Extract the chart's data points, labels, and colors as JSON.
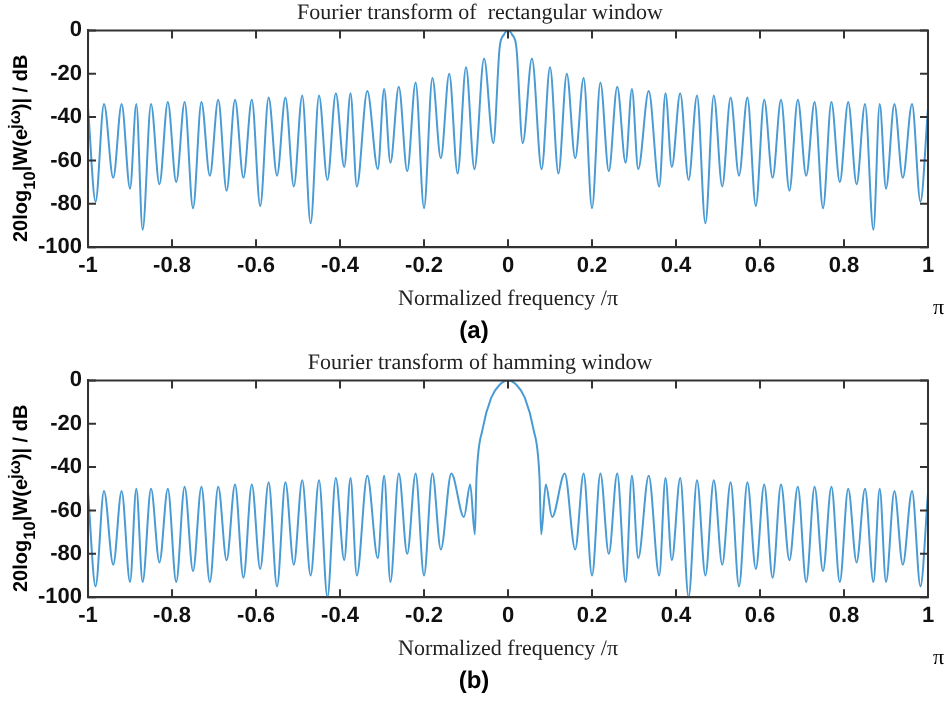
{
  "chart_data": [
    {
      "type": "line",
      "title": "Fourier transform of  rectangular window",
      "xlabel": "Normalized frequency /π",
      "ylabel": "20log$_{10}$|W(e$^{jω}$)| / dB",
      "x": [
        -1,
        -0.982,
        -0.962,
        -0.94,
        -0.92,
        -0.9,
        -0.885,
        -0.87,
        -0.85,
        -0.83,
        -0.81,
        -0.79,
        -0.77,
        -0.75,
        -0.73,
        -0.71,
        -0.69,
        -0.67,
        -0.65,
        -0.63,
        -0.61,
        -0.59,
        -0.57,
        -0.55,
        -0.53,
        -0.51,
        -0.49,
        -0.47,
        -0.45,
        -0.43,
        -0.41,
        -0.39,
        -0.375,
        -0.36,
        -0.335,
        -0.31,
        -0.295,
        -0.28,
        -0.26,
        -0.24,
        -0.22,
        -0.2,
        -0.18,
        -0.16,
        -0.14,
        -0.12,
        -0.1,
        -0.08,
        -0.057,
        -0.035,
        -0.02,
        -0.01,
        0,
        0.01,
        0.02,
        0.035,
        0.057,
        0.08,
        0.1,
        0.12,
        0.14,
        0.16,
        0.18,
        0.2,
        0.22,
        0.24,
        0.26,
        0.28,
        0.295,
        0.31,
        0.335,
        0.36,
        0.375,
        0.39,
        0.41,
        0.43,
        0.45,
        0.47,
        0.49,
        0.51,
        0.53,
        0.55,
        0.57,
        0.59,
        0.61,
        0.63,
        0.65,
        0.67,
        0.69,
        0.71,
        0.73,
        0.75,
        0.77,
        0.79,
        0.81,
        0.83,
        0.85,
        0.87,
        0.885,
        0.9,
        0.92,
        0.94,
        0.962,
        0.982,
        1
      ],
      "series": [
        {
          "color": "#4a9bd4",
          "values": [
            -36,
            -79,
            -34,
            -68,
            -34,
            -73,
            -34,
            -92,
            -34,
            -71,
            -33,
            -70,
            -33,
            -82,
            -33,
            -67,
            -32,
            -74,
            -32,
            -68,
            -32,
            -81,
            -31,
            -67,
            -31,
            -72,
            -30,
            -89,
            -30,
            -69,
            -29,
            -63,
            -29,
            -72,
            -28,
            -64,
            -27,
            -61,
            -26,
            -65,
            -24,
            -82,
            -22,
            -59,
            -20,
            -66,
            -17,
            -64,
            -13,
            -52,
            -8,
            -2,
            0,
            -2,
            -8,
            -52,
            -13,
            -64,
            -17,
            -66,
            -20,
            -59,
            -22,
            -82,
            -24,
            -65,
            -26,
            -61,
            -27,
            -64,
            -28,
            -72,
            -29,
            -63,
            -29,
            -69,
            -30,
            -89,
            -30,
            -72,
            -31,
            -67,
            -31,
            -81,
            -32,
            -68,
            -32,
            -74,
            -32,
            -67,
            -33,
            -82,
            -33,
            -70,
            -33,
            -71,
            -34,
            -92,
            -34,
            -73,
            -34,
            -68,
            -34,
            -79,
            -36
          ]
        }
      ],
      "xlim": [
        -1,
        1
      ],
      "xticks": [
        -1,
        -0.8,
        -0.6,
        -0.4,
        -0.2,
        0,
        0.2,
        0.4,
        0.6,
        0.8,
        1
      ],
      "ylim": [
        -100,
        0
      ],
      "yticks": [
        -100,
        -80,
        -60,
        -40,
        -20,
        0
      ],
      "grid": false,
      "legend": false,
      "annotations": [
        "π",
        "(a)"
      ]
    },
    {
      "type": "line",
      "title": "Fourier transform of hamming window",
      "xlabel": "Normalized frequency /π",
      "ylabel": "20log$_{10}$|W(e$^{jω}$)| / dB",
      "x": [
        -1,
        -0.982,
        -0.962,
        -0.94,
        -0.92,
        -0.9,
        -0.885,
        -0.87,
        -0.85,
        -0.83,
        -0.81,
        -0.79,
        -0.77,
        -0.75,
        -0.73,
        -0.71,
        -0.69,
        -0.67,
        -0.65,
        -0.63,
        -0.61,
        -0.59,
        -0.57,
        -0.55,
        -0.53,
        -0.51,
        -0.49,
        -0.47,
        -0.45,
        -0.43,
        -0.41,
        -0.39,
        -0.375,
        -0.36,
        -0.335,
        -0.31,
        -0.295,
        -0.28,
        -0.26,
        -0.24,
        -0.22,
        -0.2,
        -0.18,
        -0.16,
        -0.135,
        -0.105,
        -0.09,
        -0.079,
        -0.075,
        -0.06,
        -0.04,
        -0.02,
        0,
        0.02,
        0.04,
        0.06,
        0.075,
        0.079,
        0.09,
        0.105,
        0.135,
        0.16,
        0.18,
        0.2,
        0.22,
        0.24,
        0.26,
        0.28,
        0.295,
        0.31,
        0.335,
        0.36,
        0.375,
        0.39,
        0.41,
        0.43,
        0.45,
        0.47,
        0.49,
        0.51,
        0.53,
        0.55,
        0.57,
        0.59,
        0.61,
        0.63,
        0.65,
        0.67,
        0.69,
        0.71,
        0.73,
        0.75,
        0.77,
        0.79,
        0.81,
        0.83,
        0.85,
        0.87,
        0.885,
        0.9,
        0.92,
        0.94,
        0.962,
        0.982,
        1
      ],
      "series": [
        {
          "color": "#4a9bd4",
          "values": [
            -52,
            -95,
            -51,
            -85,
            -51,
            -93,
            -50,
            -93,
            -50,
            -84,
            -50,
            -93,
            -49,
            -88,
            -49,
            -93,
            -49,
            -83,
            -48,
            -91,
            -48,
            -87,
            -47,
            -95,
            -47,
            -85,
            -46,
            -90,
            -46,
            -100,
            -45,
            -83,
            -45,
            -90,
            -44,
            -82,
            -44,
            -93,
            -43,
            -80,
            -43,
            -90,
            -43,
            -78,
            -43,
            -63,
            -48,
            -71,
            -45,
            -22,
            -8,
            -2,
            0,
            -2,
            -8,
            -22,
            -45,
            -71,
            -48,
            -63,
            -43,
            -78,
            -43,
            -90,
            -43,
            -80,
            -43,
            -93,
            -44,
            -82,
            -44,
            -90,
            -45,
            -83,
            -45,
            -100,
            -46,
            -90,
            -46,
            -85,
            -47,
            -95,
            -47,
            -87,
            -48,
            -91,
            -48,
            -83,
            -49,
            -93,
            -49,
            -88,
            -49,
            -93,
            -50,
            -84,
            -50,
            -93,
            -50,
            -93,
            -51,
            -85,
            -51,
            -95,
            -52
          ]
        }
      ],
      "xlim": [
        -1,
        1
      ],
      "xticks": [
        -1,
        -0.8,
        -0.6,
        -0.4,
        -0.2,
        0,
        0.2,
        0.4,
        0.6,
        0.8,
        1
      ],
      "ylim": [
        -100,
        0
      ],
      "yticks": [
        -100,
        -80,
        -60,
        -40,
        -20,
        0
      ],
      "grid": false,
      "legend": false,
      "annotations": [
        "π",
        "(b)"
      ]
    }
  ]
}
